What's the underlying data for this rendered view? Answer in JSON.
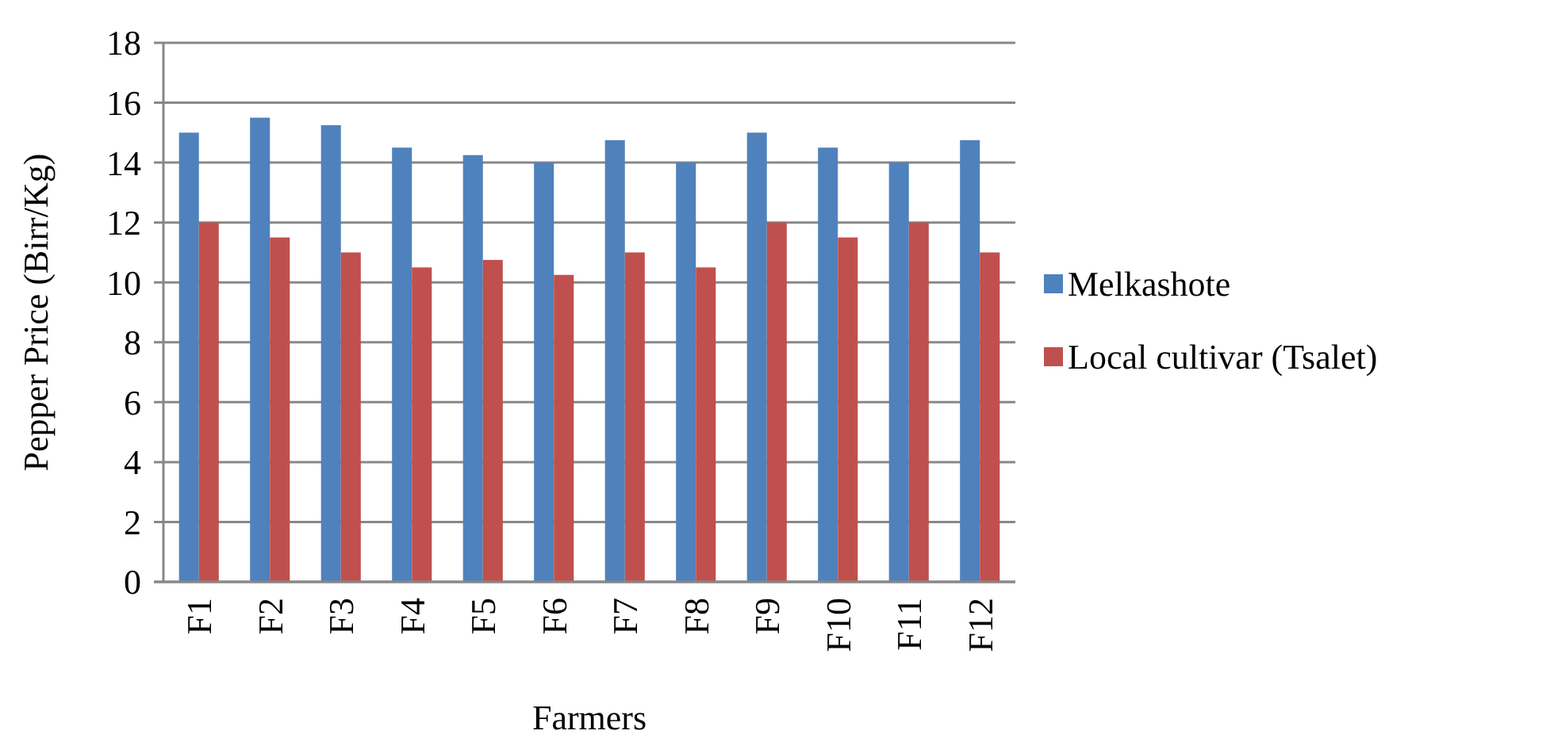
{
  "chart_data": {
    "type": "bar",
    "xlabel": "Farmers",
    "ylabel": "Pepper Price (Birr/Kg)",
    "categories": [
      "F1",
      "F2",
      "F3",
      "F4",
      "F5",
      "F6",
      "F7",
      "F8",
      "F9",
      "F10",
      "F11",
      "F12"
    ],
    "series": [
      {
        "name": "Melkashote",
        "color": "#4f81bd",
        "values": [
          15,
          15.5,
          15.25,
          14.5,
          14.25,
          14,
          14.75,
          14,
          15,
          14.5,
          14,
          14.75
        ]
      },
      {
        "name": "Local cultivar (Tsalet)",
        "color": "#c0504d",
        "values": [
          12,
          11.5,
          11,
          10.5,
          10.75,
          10.25,
          11,
          10.5,
          12,
          11.5,
          12,
          11
        ]
      }
    ],
    "ylim": [
      0,
      18
    ],
    "yticks": [
      0,
      2,
      4,
      6,
      8,
      10,
      12,
      14,
      16,
      18
    ],
    "grid": "y",
    "legend": "right"
  }
}
